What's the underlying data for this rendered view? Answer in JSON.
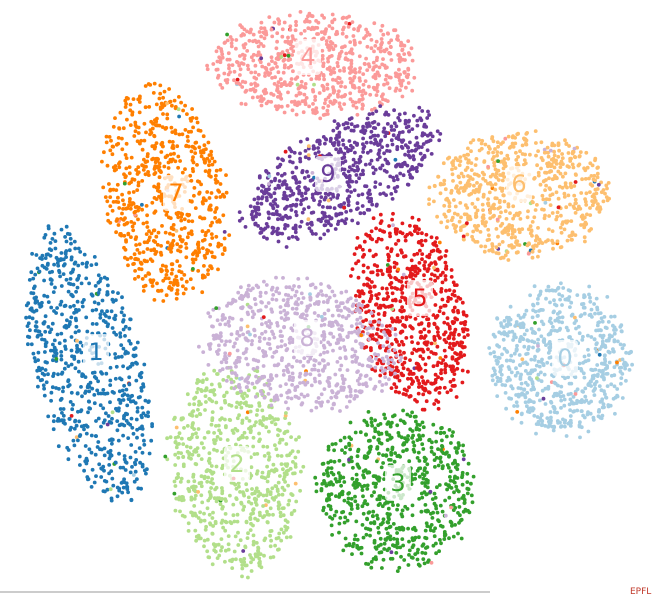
{
  "clusters": [
    {
      "label": "0",
      "color": "#a6cee3"
    },
    {
      "label": "1",
      "color": "#1f78b4"
    },
    {
      "label": "2",
      "color": "#b2df8a"
    },
    {
      "label": "3",
      "color": "#33a02c"
    },
    {
      "label": "4",
      "color": "#fb9a99"
    },
    {
      "label": "5",
      "color": "#e31a1c"
    },
    {
      "label": "6",
      "color": "#fdbf6f"
    },
    {
      "label": "7",
      "color": "#ff7f00"
    },
    {
      "label": "8",
      "color": "#cab2d6"
    },
    {
      "label": "9",
      "color": "#6a3d9a"
    }
  ],
  "footer": "EPFL"
}
